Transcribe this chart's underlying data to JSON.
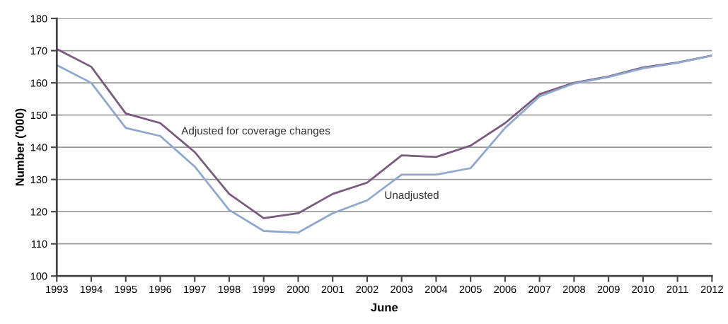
{
  "chart_data": {
    "type": "line",
    "xlabel": "June",
    "ylabel": "Number ('000)",
    "x": [
      1993,
      1994,
      1995,
      1996,
      1997,
      1998,
      1999,
      2000,
      2001,
      2002,
      2003,
      2004,
      2005,
      2006,
      2007,
      2008,
      2009,
      2010,
      2011,
      2012
    ],
    "series": [
      {
        "name": "Adjusted for coverage changes",
        "color": "#7b5a80",
        "values": [
          170.5,
          165,
          150.5,
          147.5,
          138.5,
          125.5,
          118,
          119.5,
          125.5,
          129,
          137.5,
          137,
          140.5,
          147.5,
          156.5,
          160,
          162,
          164.8,
          166.3,
          168.5
        ]
      },
      {
        "name": "Unadjusted",
        "color": "#8fa8cc",
        "values": [
          165.5,
          160,
          146,
          143.5,
          134,
          120.5,
          114,
          113.5,
          119.5,
          123.5,
          131.5,
          131.5,
          133.5,
          146,
          155.8,
          159.8,
          161.8,
          164.5,
          166.2,
          168.5
        ]
      }
    ],
    "xlim": [
      1993,
      2012
    ],
    "xticks": [
      1993,
      1994,
      1995,
      1996,
      1997,
      1998,
      1999,
      2000,
      2001,
      2002,
      2003,
      2004,
      2005,
      2006,
      2007,
      2008,
      2009,
      2010,
      2011,
      2012
    ],
    "ylim": [
      100,
      180
    ],
    "yticks": [
      100,
      110,
      120,
      130,
      140,
      150,
      160,
      170,
      180
    ],
    "grid": "y",
    "legend": false,
    "marker": "none",
    "line_style": "solid"
  }
}
